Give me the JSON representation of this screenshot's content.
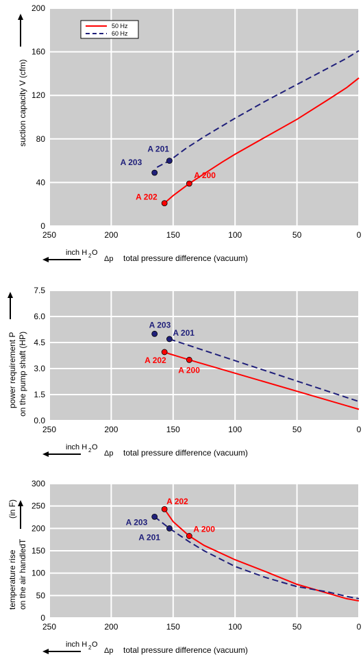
{
  "legend": {
    "entries": [
      {
        "label": "50 Hz",
        "color": "#ff0000",
        "dash": false
      },
      {
        "label": "60 Hz",
        "color": "#1f1f7a",
        "dash": true
      }
    ]
  },
  "colors": {
    "hz50": "#ff0000",
    "hz60": "#1f1f7a",
    "plot_bg": "#cccccc",
    "grid": "#ffffff"
  },
  "chart_data": [
    {
      "type": "line",
      "ylabel": "suction capacity V (cfm)",
      "xlabel_left": "inch H",
      "xlabel_sub": "2",
      "xlabel_right": "O",
      "xlabel_delta": "Δp",
      "xlabel": "total pressure difference (vacuum)",
      "xlim": [
        250,
        0
      ],
      "ylim": [
        0,
        200
      ],
      "xticks": [
        "250",
        "200",
        "150",
        "100",
        "50",
        "0"
      ],
      "yticks": [
        "0",
        "40",
        "80",
        "120",
        "160",
        "200"
      ],
      "grid": true,
      "legend_position": "top-left",
      "series": [
        {
          "name": "50 Hz",
          "key": "hz50",
          "dash": false,
          "x": [
            157,
            150,
            137,
            125,
            110,
            100,
            75,
            50,
            25,
            10,
            0
          ],
          "y": [
            21,
            28,
            39,
            48,
            59,
            66,
            82,
            98,
            116,
            127,
            136
          ]
        },
        {
          "name": "60 Hz",
          "key": "hz60",
          "dash": true,
          "x": [
            163,
            153,
            140,
            125,
            100,
            75,
            50,
            25,
            10,
            0
          ],
          "y": [
            54,
            60,
            71,
            82,
            99,
            115,
            130,
            145,
            154,
            161
          ]
        }
      ],
      "points": [
        {
          "label": "A 201",
          "x": 153,
          "y": 60,
          "key": "hz60"
        },
        {
          "label": "A 203",
          "x": 165,
          "y": 49,
          "key": "hz60"
        },
        {
          "label": "A 200",
          "x": 137,
          "y": 39,
          "key": "hz50"
        },
        {
          "label": "A 202",
          "x": 157,
          "y": 21,
          "key": "hz50"
        }
      ]
    },
    {
      "type": "line",
      "ylabel": "power requirement P",
      "ylabel2": "on the pump shaft (HP)",
      "xlabel_left": "inch H",
      "xlabel_sub": "2",
      "xlabel_right": "O",
      "xlabel_delta": "Δp",
      "xlabel": "total pressure difference (vacuum)",
      "xlim": [
        250,
        0
      ],
      "ylim": [
        0,
        7.5
      ],
      "xticks": [
        "250",
        "200",
        "150",
        "100",
        "50",
        "0"
      ],
      "yticks": [
        "0.0",
        "1.5",
        "3.0",
        "4.5",
        "6.0",
        "7.5"
      ],
      "grid": true,
      "series": [
        {
          "name": "50 Hz",
          "key": "hz50",
          "dash": false,
          "x": [
            157,
            153,
            137,
            0
          ],
          "y": [
            3.95,
            3.85,
            3.5,
            0.65
          ]
        },
        {
          "name": "60 Hz",
          "key": "hz60",
          "dash": true,
          "x": [
            153,
            0
          ],
          "y": [
            4.7,
            1.1
          ]
        }
      ],
      "points": [
        {
          "label": "A 203",
          "x": 165,
          "y": 5.0,
          "key": "hz60"
        },
        {
          "label": "A 201",
          "x": 153,
          "y": 4.7,
          "key": "hz60"
        },
        {
          "label": "A 202",
          "x": 157,
          "y": 3.95,
          "key": "hz50"
        },
        {
          "label": "A 200",
          "x": 137,
          "y": 3.5,
          "key": "hz50"
        }
      ]
    },
    {
      "type": "line",
      "ylabel": "temperature rise",
      "ylabel2": "on the air handled",
      "ylabel_T": "T",
      "ylabel_unit": "(in F)",
      "xlabel_left": "inch H",
      "xlabel_sub": "2",
      "xlabel_right": "O",
      "xlabel_delta": "Δp",
      "xlabel": "total pressure difference (vacuum)",
      "xlim": [
        250,
        0
      ],
      "ylim": [
        0,
        300
      ],
      "xticks": [
        "250",
        "200",
        "150",
        "100",
        "50",
        "0"
      ],
      "yticks": [
        "0",
        "50",
        "100",
        "150",
        "200",
        "250",
        "300"
      ],
      "grid": true,
      "series": [
        {
          "name": "50 Hz",
          "key": "hz50",
          "dash": false,
          "x": [
            157,
            150,
            137,
            125,
            100,
            75,
            50,
            25,
            10,
            0
          ],
          "y": [
            243,
            215,
            183,
            162,
            130,
            103,
            75,
            55,
            43,
            38
          ]
        },
        {
          "name": "60 Hz",
          "key": "hz60",
          "dash": true,
          "x": [
            165,
            153,
            137,
            125,
            100,
            75,
            50,
            25,
            10,
            0
          ],
          "y": [
            226,
            200,
            170,
            150,
            115,
            90,
            70,
            58,
            48,
            43
          ]
        }
      ],
      "points": [
        {
          "label": "A 202",
          "x": 157,
          "y": 243,
          "key": "hz50"
        },
        {
          "label": "A 200",
          "x": 137,
          "y": 183,
          "key": "hz50"
        },
        {
          "label": "A 203",
          "x": 165,
          "y": 226,
          "key": "hz60"
        },
        {
          "label": "A 201",
          "x": 153,
          "y": 200,
          "key": "hz60"
        }
      ]
    }
  ]
}
